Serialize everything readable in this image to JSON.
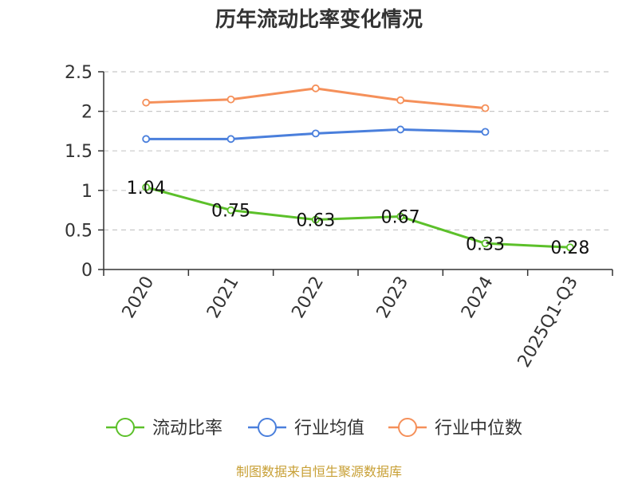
{
  "title": "历年流动比率变化情况",
  "source": "制图数据来自恒生聚源数据库",
  "chart_data": {
    "type": "line",
    "title": "历年流动比率变化情况",
    "categories": [
      "2020",
      "2021",
      "2022",
      "2023",
      "2024",
      "2025Q1-Q3"
    ],
    "ylim": [
      0,
      2.5
    ],
    "yticks": [
      0,
      0.5,
      1,
      1.5,
      2,
      2.5
    ],
    "ytick_labels": [
      "0",
      "0.5",
      "1",
      "1.5",
      "2",
      "2.5"
    ],
    "grid": true,
    "legend_position": "bottom",
    "series": [
      {
        "name": "流动比率",
        "color": "#5cc02a",
        "values": [
          1.04,
          0.75,
          0.63,
          0.67,
          0.33,
          0.28
        ],
        "labels": [
          "1.04",
          "0.75",
          "0.63",
          "0.67",
          "0.33",
          "0.28"
        ]
      },
      {
        "name": "行业均值",
        "color": "#4a7fdc",
        "values": [
          1.65,
          1.65,
          1.72,
          1.77,
          1.74,
          null
        ]
      },
      {
        "name": "行业中位数",
        "color": "#f5905a",
        "values": [
          2.11,
          2.15,
          2.29,
          2.14,
          2.04,
          null
        ]
      }
    ]
  }
}
